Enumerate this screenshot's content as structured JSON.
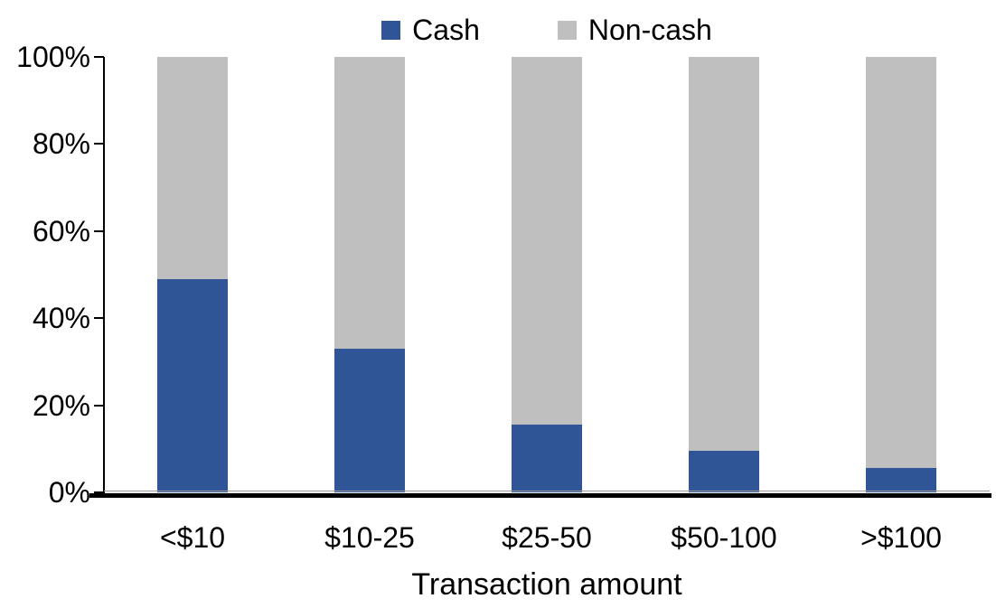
{
  "chart_data": {
    "type": "bar",
    "variant": "stacked-column-100",
    "title": "",
    "xlabel": "Transaction amount",
    "ylabel": "",
    "categories": [
      "<$10",
      "$10-25",
      "$25-50",
      "$50-100",
      ">$100"
    ],
    "series": [
      {
        "name": "Cash",
        "color": "#2F5597",
        "values": [
          49,
          33,
          15.5,
          9.5,
          5.5
        ]
      },
      {
        "name": "Non-cash",
        "color": "#BFBFBF",
        "values": [
          51,
          67,
          84.5,
          90.5,
          94.5
        ]
      }
    ],
    "ylim": [
      0,
      100
    ],
    "ytick_labels": [
      "0%",
      "20%",
      "40%",
      "60%",
      "80%",
      "100%"
    ],
    "grid": false,
    "legend_position": "top-center",
    "axis_color": "#000000",
    "background_color": "#FFFFFF"
  }
}
